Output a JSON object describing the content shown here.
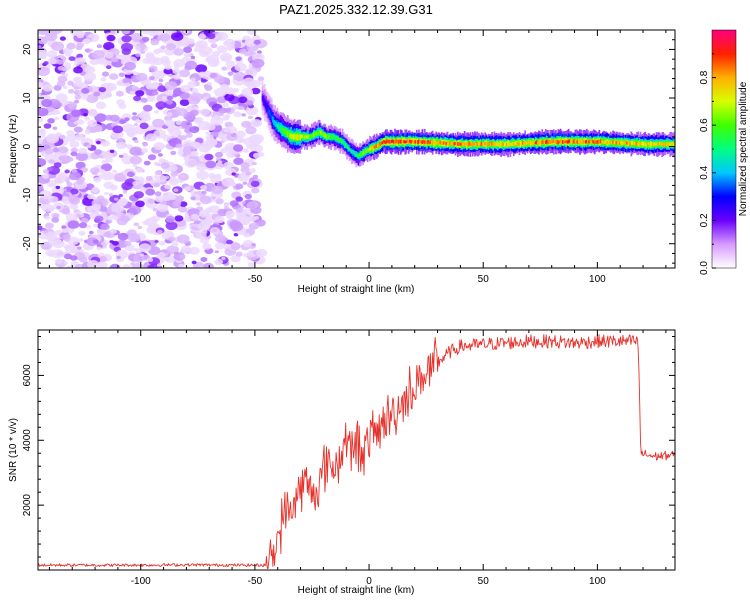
{
  "title": "PAZ1.2025.332.12.39.G31",
  "chart_data": [
    {
      "type": "heatmap",
      "title": "PAZ1.2025.332.12.39.G31",
      "xlabel": "Height of straight line (km)",
      "ylabel": "Frequency (Hz)",
      "xlim": [
        -145,
        134
      ],
      "ylim": [
        -25,
        24
      ],
      "xticks": [
        -100,
        -50,
        0,
        50,
        100
      ],
      "yticks": [
        -20,
        -10,
        0,
        10,
        20
      ],
      "xtick_labels": [
        "-100",
        "-50",
        "0",
        "50",
        "100"
      ],
      "ytick_labels": [
        "-20",
        "-10",
        "0",
        "10",
        "20"
      ],
      "noise_region_x": [
        -145,
        -47
      ],
      "ridge": {
        "x": [
          -47,
          -44,
          -42,
          -40,
          -37,
          -34,
          -30,
          -26,
          -22,
          -19,
          -16,
          -12,
          -8,
          -5,
          -2,
          0,
          3,
          6,
          10,
          20,
          40,
          60,
          80,
          100,
          120,
          134
        ],
        "freq": [
          10,
          7,
          5,
          4,
          3,
          2,
          2,
          2,
          3,
          2,
          2,
          1,
          -1,
          -2,
          -1,
          -0.5,
          0,
          1,
          1,
          1,
          0.5,
          0.5,
          1,
          1,
          0.5,
          0.5
        ],
        "amplitude": [
          0.25,
          0.35,
          0.45,
          0.55,
          0.65,
          0.75,
          0.8,
          0.7,
          0.75,
          0.7,
          0.65,
          0.6,
          0.55,
          0.6,
          0.7,
          0.8,
          0.9,
          0.95,
          1.0,
          0.95,
          0.9,
          0.85,
          0.95,
          0.9,
          0.85,
          0.8
        ]
      },
      "colorbar": {
        "label": "Normalized spectral amplitude",
        "range": [
          0,
          1
        ],
        "ticks": [
          0,
          0.2,
          0.4,
          0.6,
          0.8
        ],
        "tick_labels": [
          "0.0",
          "0.2",
          "0.4",
          "0.6",
          "0.8"
        ]
      }
    },
    {
      "type": "line",
      "xlabel": "Height of straight line (km)",
      "ylabel": "SNR (10 * v/v)",
      "xlim": [
        -145,
        134
      ],
      "ylim": [
        0,
        7400
      ],
      "xticks": [
        -100,
        -50,
        0,
        50,
        100
      ],
      "yticks": [
        2000,
        4000,
        6000
      ],
      "xtick_labels": [
        "-100",
        "-50",
        "0",
        "50",
        "100"
      ],
      "ytick_labels": [
        "2000",
        "4000",
        "6000"
      ],
      "series": [
        {
          "name": "SNR",
          "color": "#e8312a",
          "x": [
            -145,
            -120,
            -100,
            -80,
            -60,
            -45,
            -42,
            -40,
            -38,
            -35,
            -32,
            -30,
            -28,
            -25,
            -22,
            -20,
            -18,
            -15,
            -12,
            -10,
            -8,
            -5,
            -2,
            0,
            3,
            5,
            8,
            10,
            12,
            15,
            18,
            20,
            25,
            30,
            35,
            40,
            50,
            60,
            70,
            80,
            90,
            100,
            110,
            117,
            118,
            119,
            125,
            134
          ],
          "y": [
            150,
            150,
            150,
            160,
            150,
            150,
            400,
            1000,
            1600,
            1800,
            2200,
            2500,
            2700,
            2400,
            2600,
            3000,
            3400,
            3100,
            3600,
            4200,
            3600,
            3900,
            3700,
            4000,
            4300,
            4300,
            4700,
            4800,
            4900,
            5200,
            5500,
            5700,
            6100,
            6400,
            6700,
            6900,
            6950,
            7000,
            7050,
            7050,
            7000,
            7050,
            7050,
            7050,
            6900,
            3600,
            3500,
            3550
          ]
        }
      ]
    }
  ]
}
